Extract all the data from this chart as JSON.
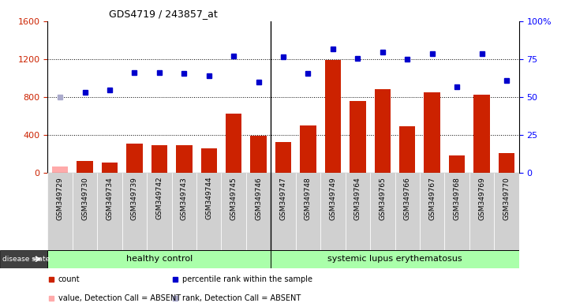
{
  "title": "GDS4719 / 243857_at",
  "samples": [
    "GSM349729",
    "GSM349730",
    "GSM349734",
    "GSM349739",
    "GSM349742",
    "GSM349743",
    "GSM349744",
    "GSM349745",
    "GSM349746",
    "GSM349747",
    "GSM349748",
    "GSM349749",
    "GSM349764",
    "GSM349765",
    "GSM349766",
    "GSM349767",
    "GSM349768",
    "GSM349769",
    "GSM349770"
  ],
  "counts": [
    65,
    120,
    105,
    310,
    290,
    290,
    255,
    620,
    390,
    320,
    500,
    1190,
    760,
    880,
    490,
    850,
    180,
    820,
    205
  ],
  "absent_flags": [
    true,
    false,
    false,
    false,
    false,
    false,
    false,
    false,
    false,
    false,
    false,
    false,
    false,
    false,
    false,
    false,
    false,
    false,
    false
  ],
  "percentile_ranks": [
    800,
    850,
    870,
    1060,
    1060,
    1050,
    1020,
    1230,
    960,
    1220,
    1050,
    1310,
    1210,
    1270,
    1200,
    1260,
    910,
    1260,
    970
  ],
  "absent_rank_flags": [
    true,
    false,
    false,
    false,
    false,
    false,
    false,
    false,
    false,
    false,
    false,
    false,
    false,
    false,
    false,
    false,
    false,
    false,
    false
  ],
  "group_boundary": 9,
  "group1_label": "healthy control",
  "group2_label": "systemic lupus erythematosus",
  "disease_state_label": "disease state",
  "left_ylim": [
    0,
    1600
  ],
  "right_ylim": [
    0,
    100
  ],
  "left_yticks": [
    0,
    400,
    800,
    1200,
    1600
  ],
  "right_yticks": [
    0,
    25,
    50,
    75,
    100
  ],
  "bar_color_present": "#cc2200",
  "bar_color_absent": "#ffaaaa",
  "dot_color_present": "#0000cc",
  "dot_color_absent": "#aaaacc",
  "cell_bg_color": "#d0d0d0",
  "group_color": "#aaffaa",
  "legend_items": [
    {
      "label": "count",
      "color": "#cc2200"
    },
    {
      "label": "percentile rank within the sample",
      "color": "#0000cc"
    },
    {
      "label": "value, Detection Call = ABSENT",
      "color": "#ffaaaa"
    },
    {
      "label": "rank, Detection Call = ABSENT",
      "color": "#aaaacc"
    }
  ],
  "grid_lines": [
    400,
    800,
    1200
  ]
}
